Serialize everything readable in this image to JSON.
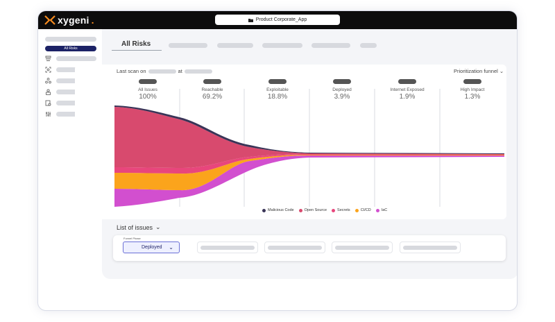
{
  "app": {
    "logo_text": "xygeni",
    "project": "Product Corporate_App"
  },
  "sidebar": {
    "active_item": "All Risks",
    "icons": [
      "layers-icon",
      "scan-icon",
      "graph-icon",
      "user-lock-icon",
      "shield-doc-icon",
      "sliders-icon"
    ]
  },
  "tabs": {
    "active": "All Risks"
  },
  "scan": {
    "prefix": "Last scan on",
    "at": "at",
    "funnel_select": "Prioritization funnel"
  },
  "stages": [
    {
      "name": "All Issues",
      "percent": "100%"
    },
    {
      "name": "Reachable",
      "percent": "69.2%"
    },
    {
      "name": "Exploitable",
      "percent": "18.8%"
    },
    {
      "name": "Deployed",
      "percent": "3.9%"
    },
    {
      "name": "Internet Exposed",
      "percent": "1.9%"
    },
    {
      "name": "High Impact",
      "percent": "1.3%"
    }
  ],
  "legend": [
    {
      "name": "Malicious Code",
      "color": "#3a3457"
    },
    {
      "name": "Open Source",
      "color": "#d84a6e"
    },
    {
      "name": "Secrets",
      "color": "#e8467c"
    },
    {
      "name": "CI/CD",
      "color": "#fba41c"
    },
    {
      "name": "IaC",
      "color": "#d24fcf"
    }
  ],
  "issues": {
    "title": "List of issues",
    "phase_label": "Funnel Phase",
    "phase_value": "Deployed"
  }
}
